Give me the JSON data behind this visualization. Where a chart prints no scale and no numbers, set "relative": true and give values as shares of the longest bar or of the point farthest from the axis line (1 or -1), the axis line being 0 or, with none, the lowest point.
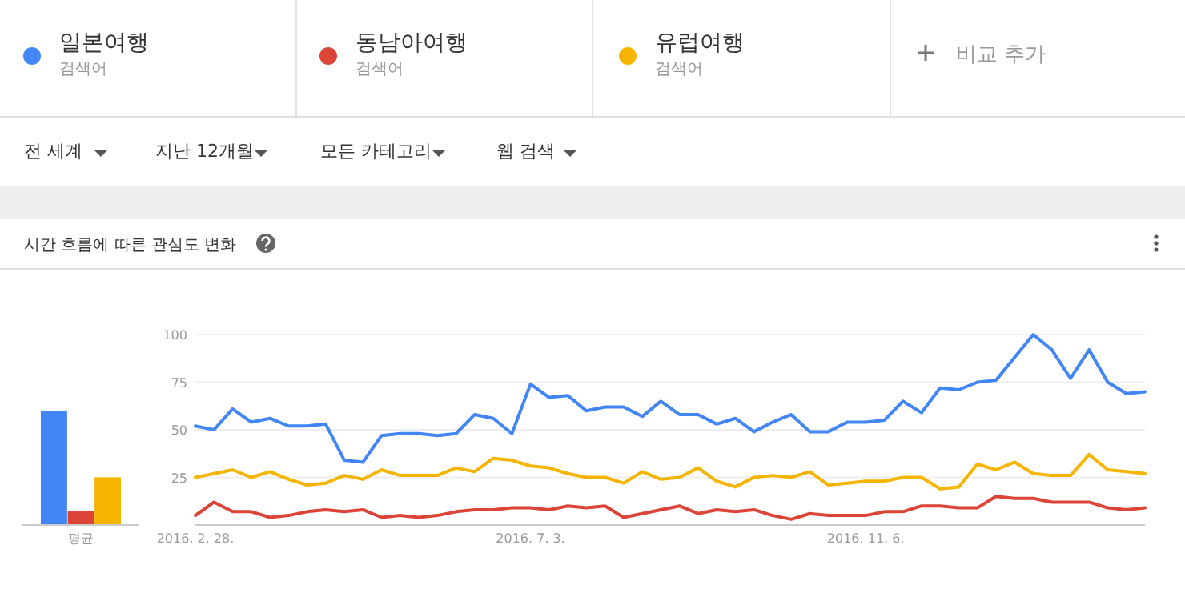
{
  "chart_data": [
    {
      "type": "other",
      "annotations": [
        "검색어",
        "검색어",
        "검색어",
        "비교 추가",
        "전 세계",
        "지난 12개월",
        "모든 카테고리",
        "웹 검색"
      ]
    },
    {
      "type": "bar",
      "categories": [
        "평균"
      ],
      "relative": true,
      "series": [
        {
          "color": "#4285f4",
          "values": [
            1
          ]
        },
        {
          "color": "#db4437",
          "values": [
            0.12
          ]
        },
        {
          "color": "#f4b400",
          "values": [
            0.42
          ]
        }
      ]
    },
    {
      "type": "line",
      "title": "시간 흐름에 따른 관심도 변화",
      "legend": "top",
      "grid": "y",
      "marker": "none",
      "line_style": "solid",
      "x": [
        "2016-02-28",
        "2016-03-06",
        "2016-03-13",
        "2016-03-20",
        "2016-03-27",
        "2016-04-03",
        "2016-04-10",
        "2016-04-17",
        "2016-04-24",
        "2016-05-01",
        "2016-05-08",
        "2016-05-15",
        "2016-05-22",
        "2016-05-29",
        "2016-06-05",
        "2016-06-12",
        "2016-06-19",
        "2016-06-26",
        "2016-07-03",
        "2016-07-10",
        "2016-07-17",
        "2016-07-24",
        "2016-07-31",
        "2016-08-07",
        "2016-08-14",
        "2016-08-21",
        "2016-08-28",
        "2016-09-04",
        "2016-09-11",
        "2016-09-18",
        "2016-09-25",
        "2016-10-02",
        "2016-10-09",
        "2016-10-16",
        "2016-10-23",
        "2016-10-30",
        "2016-11-06",
        "2016-11-13",
        "2016-11-20",
        "2016-11-27",
        "2016-12-04",
        "2016-12-11",
        "2016-12-18",
        "2016-12-25",
        "2017-01-01",
        "2017-01-08",
        "2017-01-15",
        "2017-01-22",
        "2017-01-29",
        "2017-02-05",
        "2017-02-12",
        "2017-02-19"
      ],
      "xlim": [
        "2016-02-28",
        "2017-02-19"
      ],
      "xticks": [
        {
          "value": "2016-02-28",
          "label": "2016. 2. 28."
        },
        {
          "value": "2016-07-03",
          "label": "2016. 7. 3."
        },
        {
          "value": "2016-11-06",
          "label": "2016. 11. 6."
        }
      ],
      "ylim": [
        0,
        100
      ],
      "yticks": [
        25,
        50,
        75,
        100
      ],
      "series": [
        {
          "name": "일본여행",
          "color": "#4285f4",
          "values": [
            52,
            50,
            61,
            54,
            56,
            52,
            52,
            53,
            34,
            33,
            47,
            48,
            48,
            47,
            48,
            58,
            56,
            48,
            74,
            67,
            68,
            60,
            62,
            62,
            57,
            65,
            58,
            58,
            53,
            56,
            49,
            54,
            58,
            49,
            49,
            54,
            54,
            55,
            65,
            59,
            72,
            71,
            75,
            76,
            88,
            100,
            92,
            77,
            92,
            75,
            69,
            70
          ]
        },
        {
          "name": "동남아여행",
          "color": "#db4437",
          "values": [
            5,
            12,
            7,
            7,
            4,
            5,
            7,
            8,
            7,
            8,
            4,
            5,
            4,
            5,
            7,
            8,
            8,
            9,
            9,
            8,
            10,
            9,
            10,
            4,
            6,
            8,
            10,
            6,
            8,
            7,
            8,
            5,
            3,
            6,
            5,
            5,
            5,
            7,
            7,
            10,
            10,
            9,
            9,
            15,
            14,
            14,
            12,
            12,
            12,
            9,
            8,
            9
          ]
        },
        {
          "name": "유럽여행",
          "color": "#f4b400",
          "values": [
            25,
            27,
            29,
            25,
            28,
            24,
            21,
            22,
            26,
            24,
            29,
            26,
            26,
            26,
            30,
            28,
            35,
            34,
            31,
            30,
            27,
            25,
            25,
            22,
            28,
            24,
            25,
            30,
            23,
            20,
            25,
            26,
            25,
            28,
            21,
            22,
            23,
            23,
            25,
            25,
            19,
            20,
            32,
            29,
            33,
            27,
            26,
            26,
            37,
            29,
            28,
            27
          ]
        }
      ]
    }
  ]
}
